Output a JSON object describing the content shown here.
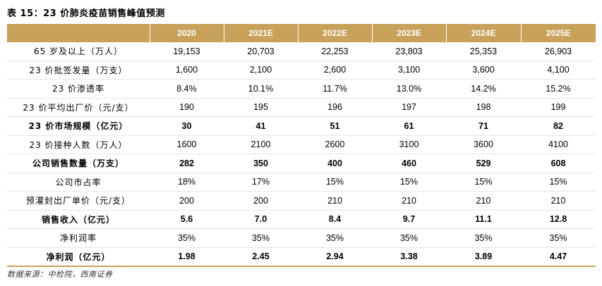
{
  "title": "表 15：23 价肺炎疫苗销售峰值预测",
  "headers": [
    "",
    "2020",
    "2021E",
    "2022E",
    "2023E",
    "2024E",
    "2025E"
  ],
  "rows": [
    {
      "label": "65 岁及以上（万人）",
      "values": [
        "19,153",
        "20,703",
        "22,253",
        "23,803",
        "25,353",
        "26,903"
      ],
      "bold": false
    },
    {
      "label": "23 价批签发量（万支）",
      "values": [
        "1,600",
        "2,100",
        "2,600",
        "3,100",
        "3,600",
        "4,100"
      ],
      "bold": false
    },
    {
      "label": "23 价渗透率",
      "values": [
        "8.4%",
        "10.1%",
        "11.7%",
        "13.0%",
        "14.2%",
        "15.2%"
      ],
      "bold": false
    },
    {
      "label": "23 价平均出厂价（元/支）",
      "values": [
        "190",
        "195",
        "196",
        "197",
        "198",
        "199"
      ],
      "bold": false
    },
    {
      "label": "23 价市场规模（亿元）",
      "values": [
        "30",
        "41",
        "51",
        "61",
        "71",
        "82"
      ],
      "bold": true
    },
    {
      "label": "23 价接种人数（万人）",
      "values": [
        "1600",
        "2100",
        "2600",
        "3100",
        "3600",
        "4100"
      ],
      "bold": false
    },
    {
      "label": "公司销售数量（万支）",
      "values": [
        "282",
        "350",
        "400",
        "460",
        "529",
        "608"
      ],
      "bold": true
    },
    {
      "label": "公司市占率",
      "values": [
        "18%",
        "17%",
        "15%",
        "15%",
        "15%",
        "15%"
      ],
      "bold": false
    },
    {
      "label": "预灌封出厂单价（元/支）",
      "values": [
        "200",
        "200",
        "210",
        "210",
        "210",
        "210"
      ],
      "bold": false
    },
    {
      "label": "销售收入（亿元）",
      "values": [
        "5.6",
        "7.0",
        "8.4",
        "9.7",
        "11.1",
        "12.8"
      ],
      "bold": true
    },
    {
      "label": "净利润率",
      "values": [
        "35%",
        "35%",
        "35%",
        "35%",
        "35%",
        "35%"
      ],
      "bold": false
    },
    {
      "label": "净利润（亿元）",
      "values": [
        "1.98",
        "2.45",
        "2.94",
        "3.38",
        "3.89",
        "4.47"
      ],
      "bold": true
    }
  ],
  "source": "数据来源：中检院，西南证券",
  "colors": {
    "header_bg": "#c8a15a",
    "header_text": "#ffffff"
  }
}
